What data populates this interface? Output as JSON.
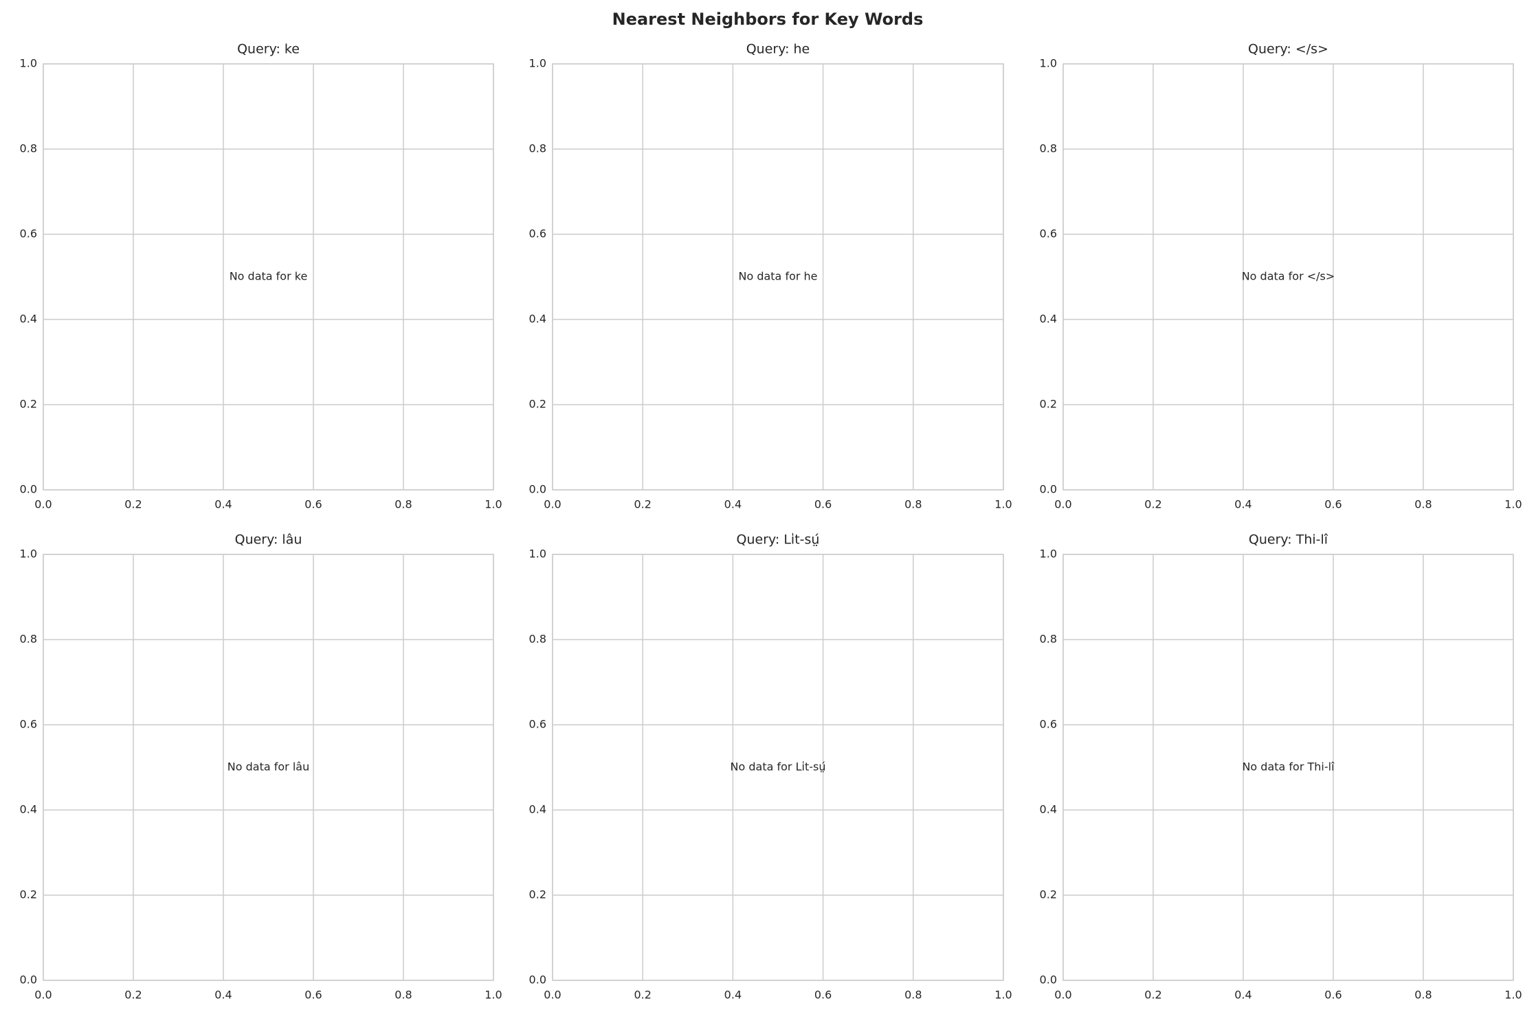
{
  "title": "Nearest Neighbors for Key Words",
  "chart_data": [
    {
      "type": "scatter",
      "title": "Query: ke",
      "annotation": "No data for ke",
      "xlim": [
        0,
        1
      ],
      "ylim": [
        0,
        1
      ],
      "xticks": [
        {
          "value": 0,
          "label": "0.0"
        },
        0.2,
        0.4,
        0.6,
        0.8,
        {
          "value": 1,
          "label": "1.0"
        }
      ],
      "yticks": [
        {
          "value": 0,
          "label": "0.0"
        },
        0.2,
        0.4,
        0.6,
        0.8,
        {
          "value": 1,
          "label": "1.0"
        }
      ],
      "grid": true
    },
    {
      "type": "scatter",
      "title": "Query: he",
      "annotation": "No data for he",
      "xlim": [
        0,
        1
      ],
      "ylim": [
        0,
        1
      ],
      "xticks": [
        {
          "value": 0,
          "label": "0.0"
        },
        0.2,
        0.4,
        0.6,
        0.8,
        {
          "value": 1,
          "label": "1.0"
        }
      ],
      "yticks": [
        {
          "value": 0,
          "label": "0.0"
        },
        0.2,
        0.4,
        0.6,
        0.8,
        {
          "value": 1,
          "label": "1.0"
        }
      ],
      "grid": true
    },
    {
      "type": "scatter",
      "title": "Query: </s>",
      "annotation": "No data for </s>",
      "xlim": [
        0,
        1
      ],
      "ylim": [
        0,
        1
      ],
      "xticks": [
        {
          "value": 0,
          "label": "0.0"
        },
        0.2,
        0.4,
        0.6,
        0.8,
        {
          "value": 1,
          "label": "1.0"
        }
      ],
      "yticks": [
        {
          "value": 0,
          "label": "0.0"
        },
        0.2,
        0.4,
        0.6,
        0.8,
        {
          "value": 1,
          "label": "1.0"
        }
      ],
      "grid": true
    },
    {
      "type": "scatter",
      "title": "Query: lâu",
      "annotation": "No data for lâu",
      "xlim": [
        0,
        1
      ],
      "ylim": [
        0,
        1
      ],
      "xticks": [
        {
          "value": 0,
          "label": "0.0"
        },
        0.2,
        0.4,
        0.6,
        0.8,
        {
          "value": 1,
          "label": "1.0"
        }
      ],
      "yticks": [
        {
          "value": 0,
          "label": "0.0"
        },
        0.2,
        0.4,
        0.6,
        0.8,
        {
          "value": 1,
          "label": "1.0"
        }
      ],
      "grid": true
    },
    {
      "type": "scatter",
      "title": "Query: Li̍t-sṳ́",
      "annotation": "No data for Li̍t-sṳ́",
      "xlim": [
        0,
        1
      ],
      "ylim": [
        0,
        1
      ],
      "xticks": [
        {
          "value": 0,
          "label": "0.0"
        },
        0.2,
        0.4,
        0.6,
        0.8,
        {
          "value": 1,
          "label": "1.0"
        }
      ],
      "yticks": [
        {
          "value": 0,
          "label": "0.0"
        },
        0.2,
        0.4,
        0.6,
        0.8,
        {
          "value": 1,
          "label": "1.0"
        }
      ],
      "grid": true
    },
    {
      "type": "scatter",
      "title": "Query: Thi-lî",
      "annotation": "No data for Thi-lî",
      "xlim": [
        0,
        1
      ],
      "ylim": [
        0,
        1
      ],
      "xticks": [
        {
          "value": 0,
          "label": "0.0"
        },
        0.2,
        0.4,
        0.6,
        0.8,
        {
          "value": 1,
          "label": "1.0"
        }
      ],
      "yticks": [
        {
          "value": 0,
          "label": "0.0"
        },
        0.2,
        0.4,
        0.6,
        0.8,
        {
          "value": 1,
          "label": "1.0"
        }
      ],
      "grid": true
    }
  ]
}
